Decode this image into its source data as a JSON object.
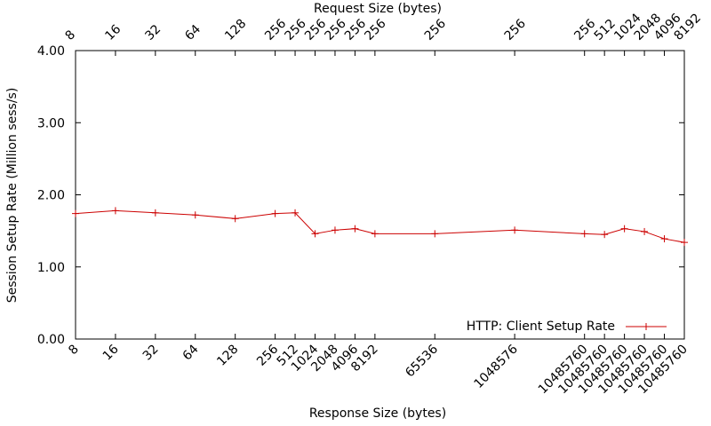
{
  "chart_data": {
    "type": "line",
    "xlabel": "Response Size (bytes)",
    "x2label": "Request Size (bytes)",
    "ylabel": "Session Setup Rate (Million sess/s)",
    "ylim": [
      0,
      4
    ],
    "yticks": [
      "0.00",
      "1.00",
      "2.00",
      "3.00",
      "4.00"
    ],
    "grid": false,
    "legend_position": "bottom-right",
    "bottom_ticks": [
      {
        "label": "8",
        "x": 0
      },
      {
        "label": "16",
        "x": 1
      },
      {
        "label": "32",
        "x": 2
      },
      {
        "label": "64",
        "x": 3
      },
      {
        "label": "128",
        "x": 4
      },
      {
        "label": "256",
        "x": 5
      },
      {
        "label": "512",
        "x": 5.5
      },
      {
        "label": "1024",
        "x": 6
      },
      {
        "label": "2048",
        "x": 6.5
      },
      {
        "label": "4096",
        "x": 7
      },
      {
        "label": "8192",
        "x": 7.5
      },
      {
        "label": "65536",
        "x": 9
      },
      {
        "label": "1048576",
        "x": 11
      },
      {
        "label": "10485760",
        "x": 12.75
      },
      {
        "label": "10485760",
        "x": 13.25
      },
      {
        "label": "10485760",
        "x": 13.75
      },
      {
        "label": "10485760",
        "x": 14.25
      },
      {
        "label": "10485760",
        "x": 14.75
      },
      {
        "label": "10485760",
        "x": 15.25
      }
    ],
    "top_ticks": [
      {
        "label": "8",
        "x": 0
      },
      {
        "label": "16",
        "x": 1
      },
      {
        "label": "32",
        "x": 2
      },
      {
        "label": "64",
        "x": 3
      },
      {
        "label": "128",
        "x": 4
      },
      {
        "label": "256",
        "x": 5
      },
      {
        "label": "256",
        "x": 5.5
      },
      {
        "label": "256",
        "x": 6
      },
      {
        "label": "256",
        "x": 6.5
      },
      {
        "label": "256",
        "x": 7
      },
      {
        "label": "256",
        "x": 7.5
      },
      {
        "label": "256",
        "x": 9
      },
      {
        "label": "256",
        "x": 11
      },
      {
        "label": "256",
        "x": 12.75
      },
      {
        "label": "512",
        "x": 13.25
      },
      {
        "label": "1024",
        "x": 13.75
      },
      {
        "label": "2048",
        "x": 14.25
      },
      {
        "label": "4096",
        "x": 14.75
      },
      {
        "label": "8192",
        "x": 15.25
      }
    ],
    "series": [
      {
        "name": "HTTP: Client Setup Rate",
        "color": "#cc0000",
        "points": [
          {
            "x": 0,
            "y": 1.74
          },
          {
            "x": 1,
            "y": 1.78
          },
          {
            "x": 2,
            "y": 1.75
          },
          {
            "x": 3,
            "y": 1.72
          },
          {
            "x": 4,
            "y": 1.67
          },
          {
            "x": 5,
            "y": 1.74
          },
          {
            "x": 5.5,
            "y": 1.75
          },
          {
            "x": 6,
            "y": 1.46
          },
          {
            "x": 6.5,
            "y": 1.51
          },
          {
            "x": 7,
            "y": 1.53
          },
          {
            "x": 7.5,
            "y": 1.46
          },
          {
            "x": 9,
            "y": 1.46
          },
          {
            "x": 11,
            "y": 1.51
          },
          {
            "x": 12.75,
            "y": 1.46
          },
          {
            "x": 13.25,
            "y": 1.45
          },
          {
            "x": 13.75,
            "y": 1.53
          },
          {
            "x": 14.25,
            "y": 1.49
          },
          {
            "x": 14.75,
            "y": 1.39
          },
          {
            "x": 15.25,
            "y": 1.34
          }
        ]
      }
    ]
  }
}
